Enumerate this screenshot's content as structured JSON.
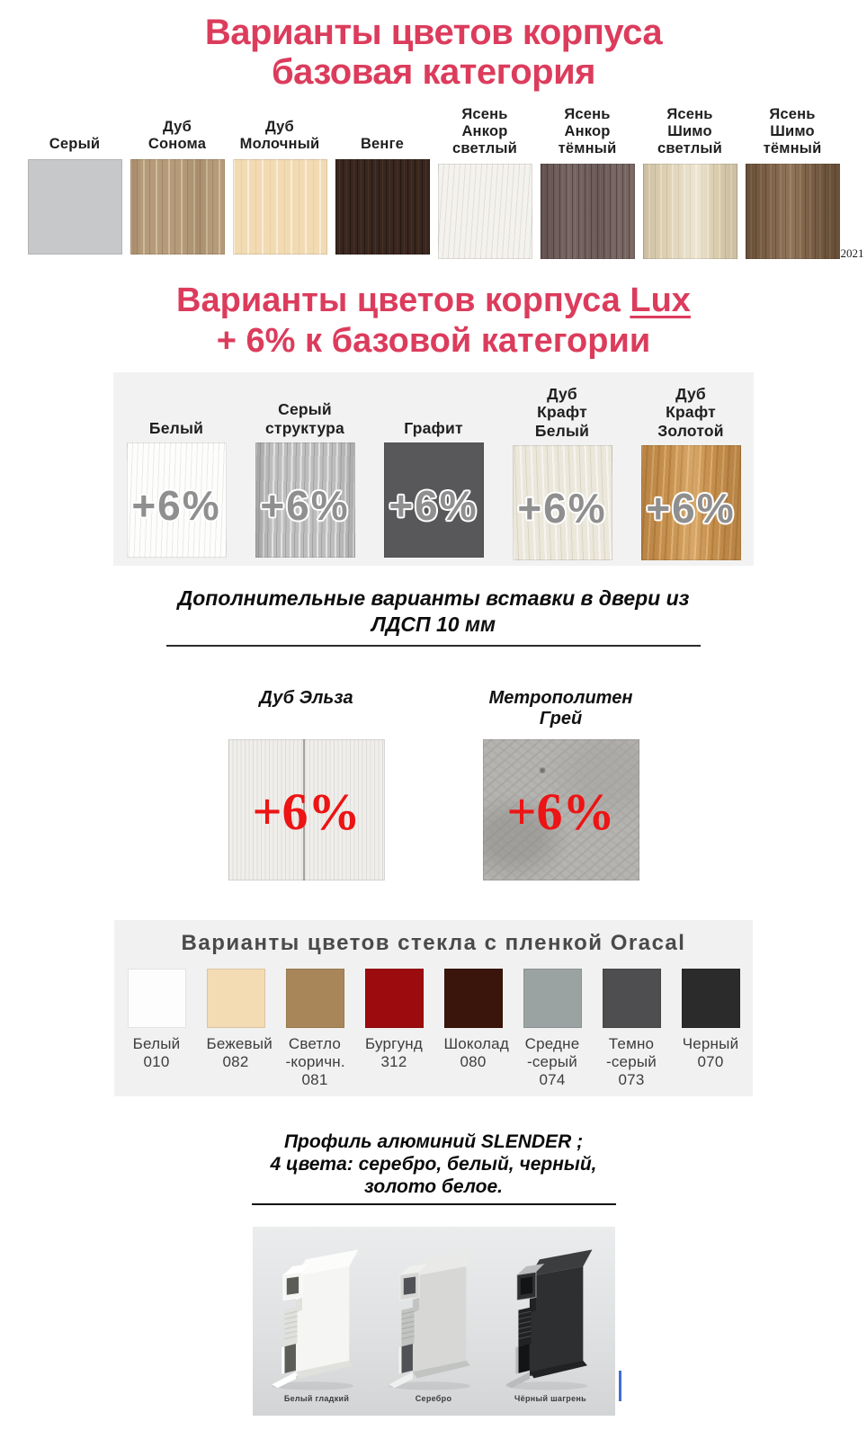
{
  "accent_pink": "#dc3c5c",
  "section_base": {
    "title_line1": "Варианты цветов корпуса",
    "title_line2": "базовая категория",
    "watermark": "2021",
    "items": [
      {
        "label": "Серый",
        "finish": "tx-gray",
        "base": "#c7c8ca"
      },
      {
        "label": "Дуб\nСонома",
        "finish": "tx-sonoma",
        "base": "#b59b79"
      },
      {
        "label": "Дуб\nМолочный",
        "finish": "tx-milk",
        "base": "#f2dab3"
      },
      {
        "label": "Венге",
        "finish": "tx-wenge",
        "base": "#38261f"
      },
      {
        "label": "Ясень\nАнкор\nсветлый",
        "finish": "tx-ankor-light",
        "base": "#f4f2ee"
      },
      {
        "label": "Ясень\nАнкор\nтёмный",
        "finish": "tx-ankor-dark",
        "base": "#786663"
      },
      {
        "label": "Ясень\nШимо\nсветлый",
        "finish": "tx-shimo-light",
        "base": "#dccfb2"
      },
      {
        "label": "Ясень\nШимо\nтёмный",
        "finish": "tx-shimo-dark",
        "base": "#7e6349"
      }
    ]
  },
  "section_lux": {
    "title_line1_prefix": "Варианты цветов корпуса ",
    "title_line1_lux": "Lux",
    "title_line2": "+ 6% к базовой категории",
    "badge": "+6%",
    "badge_color": "#8f8f8f",
    "panel_bg": "#f2f2f2",
    "items": [
      {
        "label": "Белый",
        "finish": "tx-white-wood",
        "base": "#fdfdfc"
      },
      {
        "label": "Серый\nструктура",
        "finish": "tx-gray-structure",
        "base": "#bebebe"
      },
      {
        "label": "Графит",
        "finish": "tx-graphite",
        "base": "#58585b"
      },
      {
        "label": "Дуб\nКрафт\nБелый",
        "finish": "tx-kraft-white",
        "base": "#ebe7db"
      },
      {
        "label": "Дуб\nКрафт\nЗолотой",
        "finish": "tx-kraft-gold",
        "base": "#c7914e"
      }
    ]
  },
  "section_inserts": {
    "title_line1": "Дополнительные варианты вставки в двери из",
    "title_line2": "ЛДСП 10 мм",
    "badge": "+6%",
    "badge_color": "#ec1414",
    "items": [
      {
        "label": "Дуб Эльза",
        "finish": "tx-elsa",
        "base": "#efeeeb"
      },
      {
        "label": "Метрополитен Грей",
        "finish": "tx-metro",
        "base": "#b6b4b1"
      }
    ]
  },
  "section_glass": {
    "title": "Варианты цветов стекла с пленкой Oracal",
    "title_color": "#4a4a4a",
    "panel_bg": "#f1f1f1",
    "items": [
      {
        "label": "Белый\n010",
        "color": "#fdfdfd"
      },
      {
        "label": "Бежевый\n082",
        "color": "#f3dcb4"
      },
      {
        "label": "Светло\n-коричн.\n081",
        "color": "#a98659"
      },
      {
        "label": "Бургунд\n312",
        "color": "#9c0b0d"
      },
      {
        "label": "Шоколад\n080",
        "color": "#3a150b"
      },
      {
        "label": "Средне\n-серый\n074",
        "color": "#9aa2a2"
      },
      {
        "label": "Темно\n-серый\n073",
        "color": "#4e4e50"
      },
      {
        "label": "Черный\n070",
        "color": "#2b2b2b"
      }
    ]
  },
  "section_profile": {
    "title_line1": "Профиль алюминий SLENDER ;",
    "title_line2": "4 цвета: серебро, белый, черный,",
    "title_line3": "золото белое.",
    "items": [
      {
        "label": "Белый гладкий",
        "face": "#f5f5f3",
        "top": "#fcfcfb",
        "side": "#e0e0dc",
        "dark": "#5d5d58",
        "edge": "#ffffff",
        "ribs": "#c9c9c5"
      },
      {
        "label": "Серебро",
        "face": "#d7d8d6",
        "top": "#e9eae8",
        "side": "#c2c4c2",
        "dark": "#515256",
        "edge": "#eff0ee",
        "ribs": "#a9aba9"
      },
      {
        "label": "Чёрный шагрень",
        "face": "#2d2f31",
        "top": "#3b3d3f",
        "side": "#202224",
        "dark": "#131415",
        "edge": "#b9bbbc",
        "ribs": "#4a4c4e"
      }
    ]
  },
  "cursor_color": "#3f6fd6"
}
